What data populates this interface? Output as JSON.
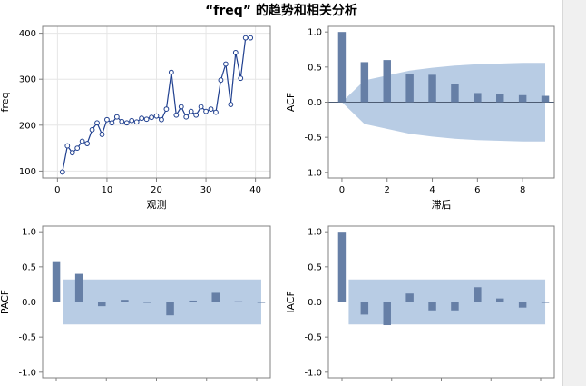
{
  "title": "“freq” 的趋势和相关分析",
  "colors": {
    "series": "#1f3f8f",
    "bar": "#667fa6",
    "band": "#b8cce4",
    "grid": "#e6e6e6",
    "axis": "#808080"
  },
  "chart_data": [
    {
      "type": "line",
      "xlabel": "观测",
      "ylabel": "freq",
      "xlim": [
        -3,
        43
      ],
      "ylim": [
        85,
        415
      ],
      "xticks": [
        "0",
        "10",
        "20",
        "30",
        "40"
      ],
      "yticks": [
        "100",
        "200",
        "300",
        "400"
      ],
      "grid": true,
      "x": [
        1,
        2,
        3,
        4,
        5,
        6,
        7,
        8,
        9,
        10,
        11,
        12,
        13,
        14,
        15,
        16,
        17,
        18,
        19,
        20,
        21,
        22,
        23,
        24,
        25,
        26,
        27,
        28,
        29,
        30,
        31,
        32,
        33,
        34,
        35,
        36,
        37,
        38,
        39
      ],
      "y": [
        98,
        155,
        140,
        150,
        165,
        160,
        190,
        205,
        180,
        212,
        205,
        218,
        208,
        205,
        210,
        207,
        215,
        213,
        217,
        220,
        212,
        235,
        315,
        222,
        240,
        218,
        230,
        222,
        240,
        230,
        235,
        228,
        298,
        333,
        245,
        358,
        302,
        390,
        390
      ]
    },
    {
      "type": "bar",
      "xlabel": "滞后",
      "ylabel": "ACF",
      "xlim": [
        -0.6,
        9.4
      ],
      "ylim": [
        -1.08,
        1.08
      ],
      "xticks": [
        "0",
        "2",
        "4",
        "6",
        "8"
      ],
      "yticks": [
        "1.0",
        "0.5",
        "0.0",
        "-0.5",
        "-1.0"
      ],
      "lags": [
        0,
        1,
        2,
        3,
        4,
        5,
        6,
        7,
        8,
        9
      ],
      "values": [
        1.0,
        0.57,
        0.6,
        0.4,
        0.39,
        0.26,
        0.13,
        0.12,
        0.1,
        0.09
      ],
      "confidence_band": [
        0.0,
        0.31,
        0.38,
        0.45,
        0.49,
        0.52,
        0.54,
        0.55,
        0.56,
        0.56
      ]
    },
    {
      "type": "bar",
      "xlabel": "",
      "ylabel": "PACF",
      "xlim": [
        0.4,
        10.4
      ],
      "ylim": [
        -1.08,
        1.08
      ],
      "yticks": [
        "1.0",
        "0.5",
        "0.0",
        "-0.5",
        "-1.0"
      ],
      "lags": [
        1,
        2,
        3,
        4,
        5,
        6,
        7,
        8,
        9,
        10
      ],
      "values": [
        0.58,
        0.4,
        -0.06,
        0.03,
        -0.01,
        -0.19,
        0.02,
        0.13,
        0.01,
        0.0
      ],
      "confidence_band": 0.32
    },
    {
      "type": "bar",
      "xlabel": "",
      "ylabel": "IACF",
      "xlim": [
        -0.6,
        9.4
      ],
      "ylim": [
        -1.08,
        1.08
      ],
      "yticks": [
        "1.0",
        "0.5",
        "0.0",
        "-0.5",
        "-1.0"
      ],
      "lags": [
        0,
        1,
        2,
        3,
        4,
        5,
        6,
        7,
        8,
        9
      ],
      "values": [
        1.0,
        -0.18,
        -0.33,
        0.12,
        -0.12,
        -0.12,
        0.21,
        0.05,
        -0.08,
        0.0
      ],
      "confidence_band": 0.32
    }
  ]
}
